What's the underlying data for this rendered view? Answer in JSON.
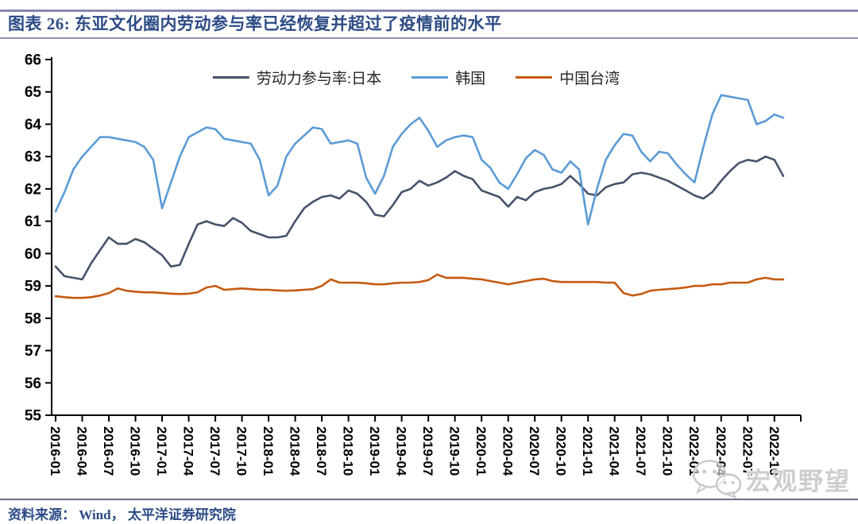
{
  "header": {
    "title": "图表 26:  东亚文化圈内劳动参与率已经恢复并超过了疫情前的水平"
  },
  "footer": {
    "source": "资料来源： Wind， 太平洋证券研究院"
  },
  "watermark": {
    "icon": "wechat-icon",
    "text": "宏观野望"
  },
  "colors": {
    "divider": "#8787b0",
    "title_text": "#2c4b85",
    "axis": "#000000",
    "watermark_gray": "#cecece"
  },
  "chart_data": {
    "type": "line",
    "title": "",
    "xlabel": "",
    "ylabel": "",
    "x_frequency": "monthly",
    "x_start": "2016-01",
    "x_end": "2022-11",
    "ylim": [
      55,
      66
    ],
    "grid": false,
    "legend_position": "top-center",
    "y_ticks": [
      55,
      56,
      57,
      58,
      59,
      60,
      61,
      62,
      63,
      64,
      65,
      66
    ],
    "x_tick_labels": [
      "2016-01",
      "2016-04",
      "2016-07",
      "2016-10",
      "2017-01",
      "2017-04",
      "2017-07",
      "2017-10",
      "2018-01",
      "2018-04",
      "2018-07",
      "2018-10",
      "2019-01",
      "2019-04",
      "2019-07",
      "2019-10",
      "2020-01",
      "2020-04",
      "2020-07",
      "2020-10",
      "2021-01",
      "2021-04",
      "2021-07",
      "2021-10",
      "2022-01",
      "2022-04",
      "2022-07",
      "2022-10"
    ],
    "series": [
      {
        "name": "劳动力参与率:日本",
        "color": "#44546a",
        "values": [
          59.6,
          59.3,
          59.25,
          59.2,
          59.7,
          60.1,
          60.5,
          60.3,
          60.3,
          60.45,
          60.35,
          60.15,
          59.95,
          59.6,
          59.65,
          60.3,
          60.9,
          61.0,
          60.9,
          60.85,
          61.1,
          60.95,
          60.7,
          60.6,
          60.5,
          60.5,
          60.55,
          61.0,
          61.4,
          61.6,
          61.75,
          61.8,
          61.7,
          61.95,
          61.85,
          61.6,
          61.2,
          61.15,
          61.5,
          61.9,
          62.0,
          62.25,
          62.1,
          62.2,
          62.35,
          62.55,
          62.4,
          62.3,
          61.95,
          61.85,
          61.75,
          61.45,
          61.75,
          61.65,
          61.9,
          62.0,
          62.05,
          62.15,
          62.4,
          62.15,
          61.85,
          61.8,
          62.05,
          62.15,
          62.2,
          62.45,
          62.5,
          62.45,
          62.35,
          62.25,
          62.1,
          61.95,
          61.8,
          61.7,
          61.9,
          62.25,
          62.55,
          62.8,
          62.9,
          62.85,
          63.0,
          62.9,
          62.4
        ]
      },
      {
        "name": "韩国",
        "color": "#5b9bd5",
        "values": [
          61.3,
          61.9,
          62.6,
          63.0,
          63.3,
          63.6,
          63.6,
          63.55,
          63.5,
          63.45,
          63.3,
          62.9,
          61.4,
          62.2,
          63.0,
          63.6,
          63.75,
          63.9,
          63.85,
          63.55,
          63.5,
          63.45,
          63.4,
          62.9,
          61.8,
          62.1,
          63.0,
          63.4,
          63.65,
          63.9,
          63.85,
          63.4,
          63.45,
          63.5,
          63.4,
          62.35,
          61.85,
          62.4,
          63.3,
          63.7,
          64.0,
          64.2,
          63.8,
          63.3,
          63.5,
          63.6,
          63.65,
          63.6,
          62.9,
          62.65,
          62.2,
          62.0,
          62.45,
          62.95,
          63.2,
          63.05,
          62.6,
          62.5,
          62.85,
          62.6,
          60.9,
          62.0,
          62.9,
          63.35,
          63.7,
          63.65,
          63.15,
          62.85,
          63.15,
          63.1,
          62.75,
          62.45,
          62.2,
          63.3,
          64.3,
          64.9,
          64.85,
          64.8,
          64.75,
          64.0,
          64.1,
          64.3,
          64.2
        ]
      },
      {
        "name": "中国台湾",
        "color": "#c55a11",
        "values": [
          58.68,
          58.65,
          58.63,
          58.63,
          58.65,
          58.7,
          58.78,
          58.92,
          58.85,
          58.82,
          58.8,
          58.8,
          58.78,
          58.76,
          58.75,
          58.76,
          58.8,
          58.95,
          59.0,
          58.88,
          58.9,
          58.92,
          58.9,
          58.88,
          58.88,
          58.86,
          58.85,
          58.86,
          58.88,
          58.9,
          59.0,
          59.2,
          59.1,
          59.1,
          59.1,
          59.08,
          59.05,
          59.05,
          59.08,
          59.1,
          59.1,
          59.12,
          59.18,
          59.35,
          59.25,
          59.25,
          59.25,
          59.22,
          59.2,
          59.15,
          59.1,
          59.05,
          59.1,
          59.15,
          59.2,
          59.22,
          59.15,
          59.12,
          59.12,
          59.12,
          59.12,
          59.12,
          59.1,
          59.1,
          58.78,
          58.7,
          58.75,
          58.85,
          58.88,
          58.9,
          58.92,
          58.95,
          59.0,
          59.0,
          59.05,
          59.05,
          59.1,
          59.1,
          59.1,
          59.2,
          59.25,
          59.2,
          59.2
        ]
      }
    ]
  }
}
